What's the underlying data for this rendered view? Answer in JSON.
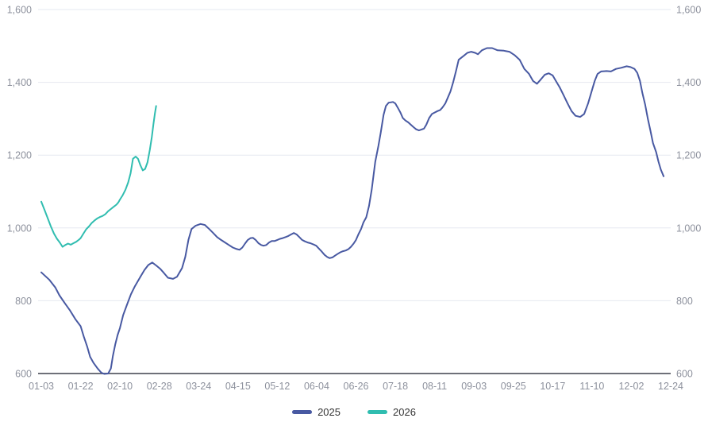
{
  "chart_data": {
    "type": "line",
    "title": "",
    "xlabel": "",
    "ylabel": "",
    "x_axis": {
      "tick_labels": [
        "01-03",
        "01-22",
        "02-10",
        "02-28",
        "03-24",
        "04-15",
        "05-12",
        "06-04",
        "06-26",
        "07-18",
        "08-11",
        "09-03",
        "09-25",
        "10-17",
        "11-10",
        "12-02",
        "12-24"
      ],
      "x_unit": "tick-interval index (0 = 01-03, 16 = 12-24)"
    },
    "y_axis": {
      "min": 600,
      "max": 1600,
      "tick_step": 200,
      "tick_labels": [
        "600",
        "800",
        "1,000",
        "1,200",
        "1,400",
        "1,600"
      ],
      "sides": "both",
      "grid": "horizontal-only"
    },
    "colors": {
      "grid_line": "#e6e8f0",
      "axis_line": "#6e7079",
      "tick_label": "#8d919d",
      "legend_text": "#333333"
    },
    "legend": {
      "position": "bottom-center",
      "items": [
        "2025",
        "2026"
      ]
    },
    "series": [
      {
        "name": "2025",
        "color": "#4859a2",
        "points": [
          [
            0,
            878
          ],
          [
            0.1,
            868
          ],
          [
            0.2,
            858
          ],
          [
            0.36,
            836
          ],
          [
            0.46,
            815
          ],
          [
            0.6,
            793
          ],
          [
            0.72,
            775
          ],
          [
            0.87,
            749
          ],
          [
            1,
            730
          ],
          [
            1.08,
            702
          ],
          [
            1.17,
            673
          ],
          [
            1.24,
            646
          ],
          [
            1.33,
            629
          ],
          [
            1.43,
            614
          ],
          [
            1.53,
            602
          ],
          [
            1.6,
            599
          ],
          [
            1.7,
            600
          ],
          [
            1.77,
            614
          ],
          [
            1.82,
            648
          ],
          [
            1.88,
            680
          ],
          [
            1.94,
            706
          ],
          [
            2,
            725
          ],
          [
            2.08,
            760
          ],
          [
            2.18,
            789
          ],
          [
            2.28,
            818
          ],
          [
            2.38,
            840
          ],
          [
            2.52,
            866
          ],
          [
            2.62,
            884
          ],
          [
            2.72,
            898
          ],
          [
            2.82,
            905
          ],
          [
            2.92,
            897
          ],
          [
            3.02,
            888
          ],
          [
            3.12,
            876
          ],
          [
            3.22,
            863
          ],
          [
            3.35,
            860
          ],
          [
            3.45,
            866
          ],
          [
            3.58,
            890
          ],
          [
            3.66,
            920
          ],
          [
            3.74,
            967
          ],
          [
            3.82,
            997
          ],
          [
            3.92,
            1006
          ],
          [
            4.05,
            1011
          ],
          [
            4.16,
            1008
          ],
          [
            4.27,
            997
          ],
          [
            4.37,
            986
          ],
          [
            4.47,
            975
          ],
          [
            4.57,
            967
          ],
          [
            4.67,
            960
          ],
          [
            4.77,
            953
          ],
          [
            4.87,
            946
          ],
          [
            4.97,
            942
          ],
          [
            5.04,
            940
          ],
          [
            5.11,
            946
          ],
          [
            5.18,
            957
          ],
          [
            5.25,
            967
          ],
          [
            5.32,
            972
          ],
          [
            5.38,
            973
          ],
          [
            5.45,
            967
          ],
          [
            5.52,
            958
          ],
          [
            5.59,
            953
          ],
          [
            5.65,
            951
          ],
          [
            5.72,
            953
          ],
          [
            5.79,
            960
          ],
          [
            5.86,
            964
          ],
          [
            5.93,
            964
          ],
          [
            6,
            967
          ],
          [
            6.07,
            970
          ],
          [
            6.14,
            972
          ],
          [
            6.21,
            975
          ],
          [
            6.28,
            978
          ],
          [
            6.35,
            982
          ],
          [
            6.42,
            986
          ],
          [
            6.49,
            982
          ],
          [
            6.56,
            975
          ],
          [
            6.63,
            967
          ],
          [
            6.7,
            963
          ],
          [
            6.77,
            960
          ],
          [
            6.84,
            958
          ],
          [
            6.91,
            955
          ],
          [
            6.99,
            951
          ],
          [
            7.06,
            943
          ],
          [
            7.13,
            935
          ],
          [
            7.2,
            926
          ],
          [
            7.27,
            920
          ],
          [
            7.33,
            917
          ],
          [
            7.4,
            919
          ],
          [
            7.47,
            924
          ],
          [
            7.54,
            929
          ],
          [
            7.6,
            933
          ],
          [
            7.67,
            936
          ],
          [
            7.74,
            938
          ],
          [
            7.81,
            942
          ],
          [
            7.87,
            948
          ],
          [
            7.94,
            957
          ],
          [
            8,
            967
          ],
          [
            8.06,
            982
          ],
          [
            8.13,
            997
          ],
          [
            8.19,
            1015
          ],
          [
            8.26,
            1029
          ],
          [
            8.33,
            1060
          ],
          [
            8.4,
            1105
          ],
          [
            8.49,
            1182
          ],
          [
            8.57,
            1226
          ],
          [
            8.63,
            1262
          ],
          [
            8.7,
            1310
          ],
          [
            8.76,
            1335
          ],
          [
            8.83,
            1344
          ],
          [
            8.94,
            1346
          ],
          [
            9,
            1342
          ],
          [
            9.06,
            1331
          ],
          [
            9.13,
            1317
          ],
          [
            9.19,
            1302
          ],
          [
            9.26,
            1295
          ],
          [
            9.33,
            1290
          ],
          [
            9.39,
            1284
          ],
          [
            9.46,
            1277
          ],
          [
            9.53,
            1271
          ],
          [
            9.6,
            1268
          ],
          [
            9.66,
            1270
          ],
          [
            9.73,
            1273
          ],
          [
            9.79,
            1284
          ],
          [
            9.86,
            1302
          ],
          [
            9.93,
            1313
          ],
          [
            10,
            1317
          ],
          [
            10.07,
            1321
          ],
          [
            10.14,
            1324
          ],
          [
            10.2,
            1331
          ],
          [
            10.27,
            1342
          ],
          [
            10.33,
            1357
          ],
          [
            10.4,
            1375
          ],
          [
            10.47,
            1400
          ],
          [
            10.54,
            1430
          ],
          [
            10.61,
            1462
          ],
          [
            10.74,
            1473
          ],
          [
            10.83,
            1481
          ],
          [
            10.93,
            1484
          ],
          [
            11.03,
            1481
          ],
          [
            11.1,
            1477
          ],
          [
            11.2,
            1488
          ],
          [
            11.33,
            1494
          ],
          [
            11.46,
            1494
          ],
          [
            11.6,
            1488
          ],
          [
            11.76,
            1487
          ],
          [
            11.9,
            1484
          ],
          [
            12.03,
            1475
          ],
          [
            12.16,
            1462
          ],
          [
            12.28,
            1437
          ],
          [
            12.4,
            1423
          ],
          [
            12.5,
            1404
          ],
          [
            12.6,
            1396
          ],
          [
            12.7,
            1408
          ],
          [
            12.8,
            1421
          ],
          [
            12.9,
            1425
          ],
          [
            13,
            1419
          ],
          [
            13.08,
            1404
          ],
          [
            13.18,
            1386
          ],
          [
            13.28,
            1364
          ],
          [
            13.38,
            1342
          ],
          [
            13.48,
            1321
          ],
          [
            13.58,
            1308
          ],
          [
            13.7,
            1305
          ],
          [
            13.8,
            1313
          ],
          [
            13.9,
            1342
          ],
          [
            14,
            1379
          ],
          [
            14.07,
            1404
          ],
          [
            14.14,
            1423
          ],
          [
            14.23,
            1430
          ],
          [
            14.37,
            1431
          ],
          [
            14.48,
            1430
          ],
          [
            14.61,
            1437
          ],
          [
            14.74,
            1440
          ],
          [
            14.88,
            1444
          ],
          [
            14.98,
            1442
          ],
          [
            15.08,
            1437
          ],
          [
            15.15,
            1426
          ],
          [
            15.22,
            1404
          ],
          [
            15.28,
            1371
          ],
          [
            15.35,
            1339
          ],
          [
            15.42,
            1299
          ],
          [
            15.48,
            1270
          ],
          [
            15.55,
            1233
          ],
          [
            15.63,
            1208
          ],
          [
            15.69,
            1182
          ],
          [
            15.75,
            1160
          ],
          [
            15.82,
            1142
          ]
        ]
      },
      {
        "name": "2026",
        "color": "#30bdb0",
        "points": [
          [
            0,
            1072
          ],
          [
            0.08,
            1050
          ],
          [
            0.16,
            1028
          ],
          [
            0.24,
            1005
          ],
          [
            0.32,
            985
          ],
          [
            0.4,
            970
          ],
          [
            0.47,
            960
          ],
          [
            0.54,
            948
          ],
          [
            0.61,
            953
          ],
          [
            0.68,
            957
          ],
          [
            0.75,
            954
          ],
          [
            0.82,
            958
          ],
          [
            0.89,
            962
          ],
          [
            0.96,
            968
          ],
          [
            1,
            972
          ],
          [
            1.07,
            984
          ],
          [
            1.14,
            996
          ],
          [
            1.21,
            1004
          ],
          [
            1.28,
            1013
          ],
          [
            1.35,
            1020
          ],
          [
            1.42,
            1026
          ],
          [
            1.49,
            1030
          ],
          [
            1.56,
            1033
          ],
          [
            1.63,
            1038
          ],
          [
            1.7,
            1046
          ],
          [
            1.77,
            1052
          ],
          [
            1.84,
            1058
          ],
          [
            1.91,
            1064
          ],
          [
            1.96,
            1070
          ],
          [
            2,
            1078
          ],
          [
            2.07,
            1090
          ],
          [
            2.14,
            1105
          ],
          [
            2.21,
            1125
          ],
          [
            2.27,
            1150
          ],
          [
            2.33,
            1190
          ],
          [
            2.4,
            1196
          ],
          [
            2.46,
            1190
          ],
          [
            2.52,
            1172
          ],
          [
            2.58,
            1158
          ],
          [
            2.64,
            1162
          ],
          [
            2.7,
            1180
          ],
          [
            2.76,
            1215
          ],
          [
            2.81,
            1250
          ],
          [
            2.85,
            1285
          ],
          [
            2.89,
            1315
          ],
          [
            2.92,
            1335
          ]
        ]
      }
    ]
  }
}
